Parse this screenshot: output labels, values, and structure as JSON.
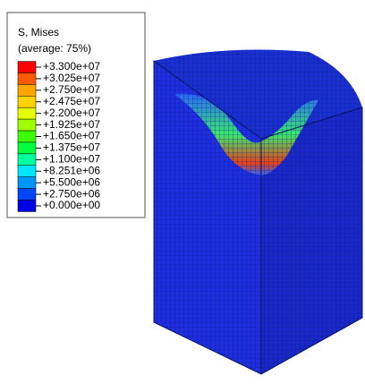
{
  "legend": {
    "title": "S, Mises",
    "subtitle": "(average: 75%)",
    "labels": [
      "+3.300e+07",
      "+3.025e+07",
      "+2.750e+07",
      "+2.475e+07",
      "+2.200e+07",
      "+1.925e+07",
      "+1.650e+07",
      "+1.375e+07",
      "+1.100e+07",
      "+8.251e+06",
      "+5.500e+06",
      "+2.750e+06",
      "+0.000e+00"
    ],
    "colors": [
      "#ff0000",
      "#ff5a00",
      "#ffa500",
      "#ffd200",
      "#e6ff00",
      "#a0ff00",
      "#3cff00",
      "#00ff3c",
      "#00ffa0",
      "#00e6ff",
      "#0096ff",
      "#0046ff",
      "#0000e6"
    ]
  }
}
